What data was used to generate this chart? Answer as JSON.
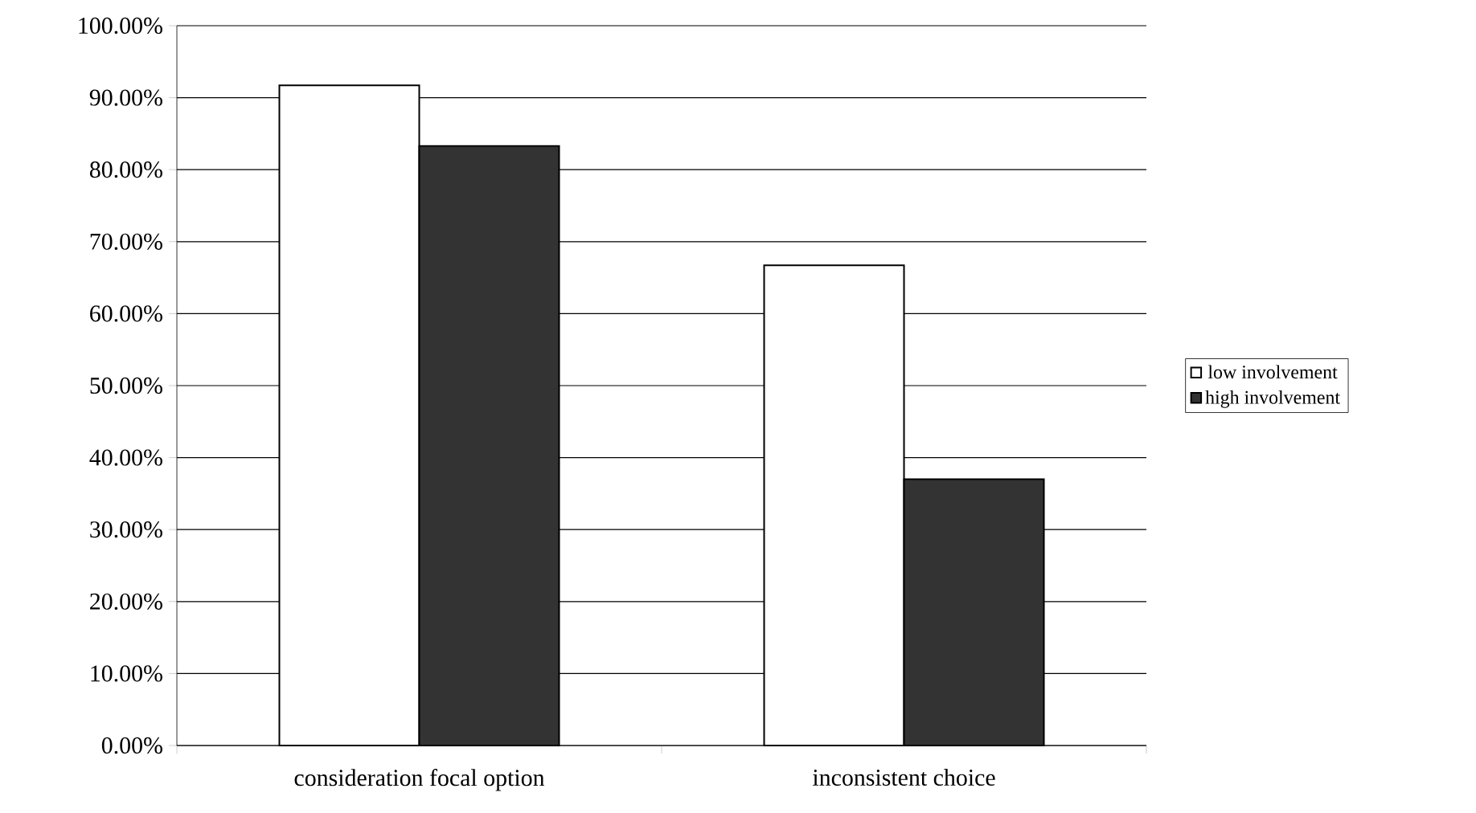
{
  "chart_data": {
    "type": "bar",
    "categories": [
      "consideration focal option",
      "inconsistent choice"
    ],
    "series": [
      {
        "name": "low involvement",
        "color": "#ffffff",
        "values": [
          91.7,
          66.7
        ]
      },
      {
        "name": "high involvement",
        "color": "#333333",
        "values": [
          83.3,
          37.0
        ]
      }
    ],
    "ylim": [
      0,
      100
    ],
    "yticks": [
      {
        "value": 0,
        "label": "0.00%"
      },
      {
        "value": 10,
        "label": "10.00%"
      },
      {
        "value": 20,
        "label": "20.00%"
      },
      {
        "value": 30,
        "label": "30.00%"
      },
      {
        "value": 40,
        "label": "40.00%"
      },
      {
        "value": 50,
        "label": "50.00%"
      },
      {
        "value": 60,
        "label": "60.00%"
      },
      {
        "value": 70,
        "label": "70.00%"
      },
      {
        "value": 80,
        "label": "80.00%"
      },
      {
        "value": 90,
        "label": "90.00%"
      },
      {
        "value": 100,
        "label": "100.00%"
      }
    ],
    "grid": "y",
    "legend": "right"
  }
}
